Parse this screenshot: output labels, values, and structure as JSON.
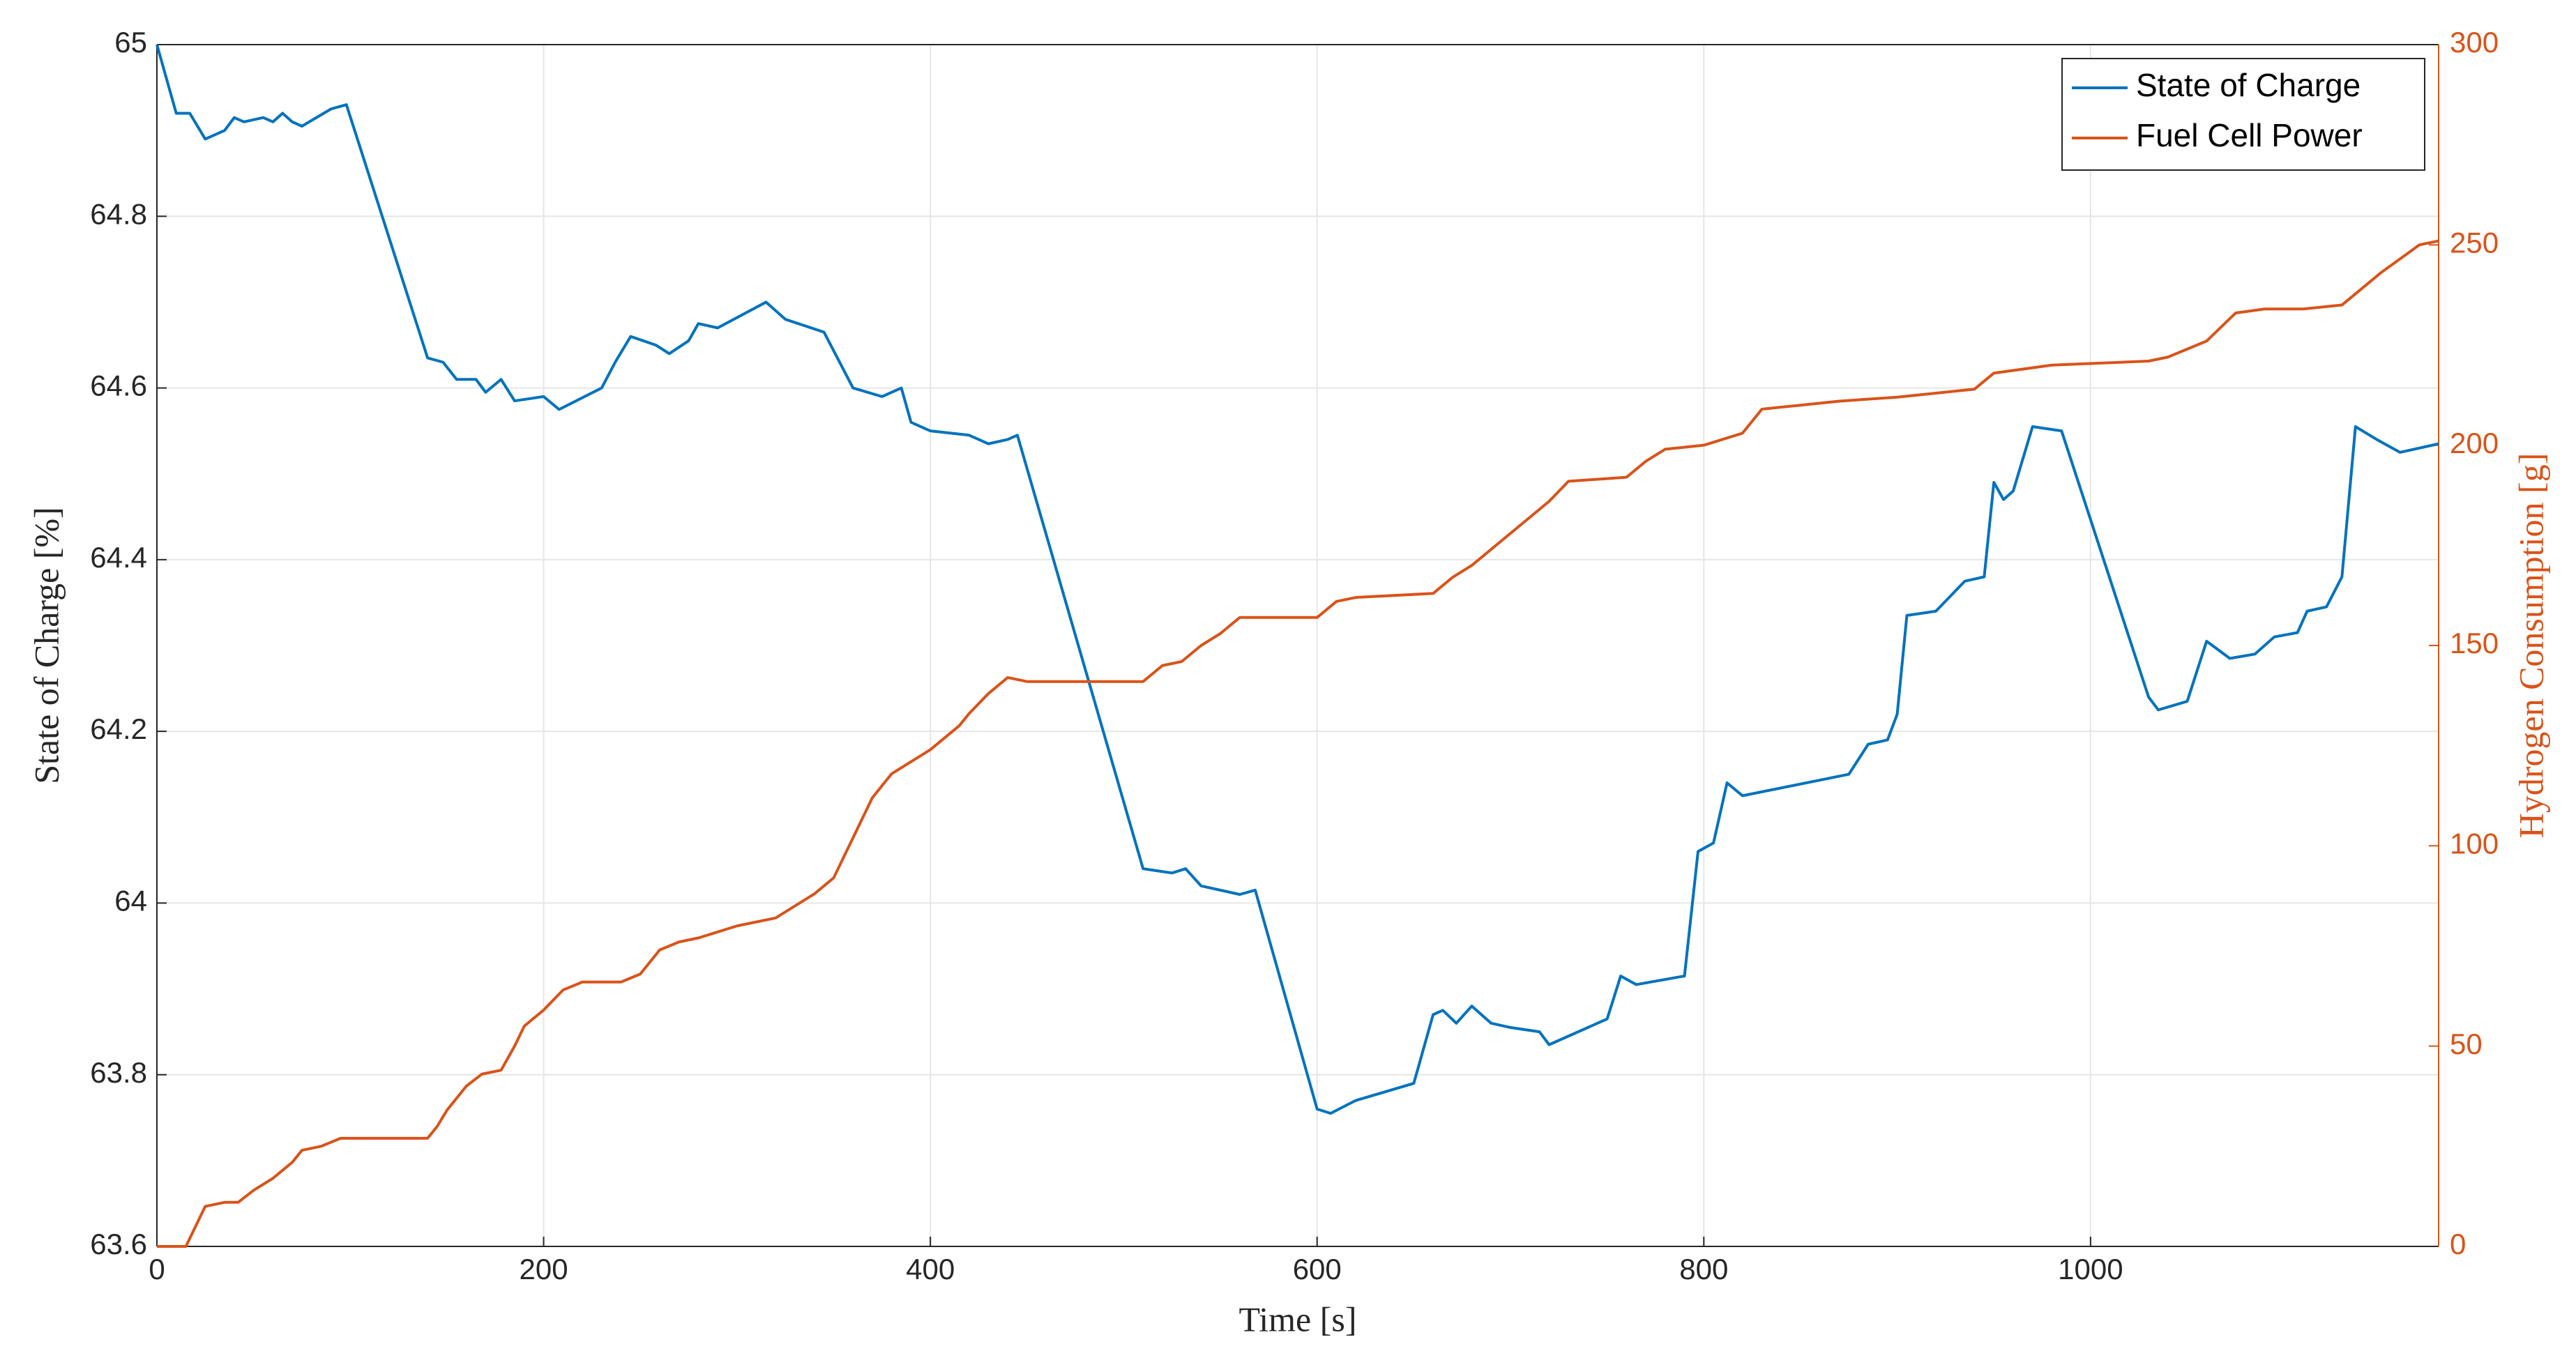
{
  "chart_data": {
    "type": "line",
    "xlabel": "Time [s]",
    "ylabel": "State of Charge [%]",
    "y2label": "Hydrogen Consumption [g]",
    "xlim": [
      0,
      1180
    ],
    "xticks": [
      0,
      200,
      400,
      600,
      800,
      1000
    ],
    "ylim": [
      63.6,
      65
    ],
    "yticks": [
      63.6,
      63.8,
      64,
      64.2,
      64.4,
      64.6,
      64.8,
      65
    ],
    "y2lim": [
      0,
      300
    ],
    "y2ticks": [
      0,
      50,
      100,
      150,
      200,
      250,
      300
    ],
    "grid": true,
    "legend": "upper right",
    "y2color": "#d95319",
    "series": [
      {
        "name": "State of Charge",
        "color": "#0072bd",
        "x": [
          0,
          10,
          17,
          25,
          35,
          40,
          45,
          55,
          60,
          65,
          70,
          75,
          90,
          98,
          140,
          148,
          155,
          165,
          170,
          178,
          185,
          200,
          208,
          230,
          237,
          245,
          258,
          265,
          275,
          280,
          290,
          315,
          325,
          345,
          360,
          375,
          385,
          390,
          400,
          420,
          430,
          440,
          445,
          510,
          525,
          532,
          540,
          560,
          568,
          600,
          607,
          620,
          650,
          660,
          665,
          672,
          680,
          690,
          700,
          715,
          720,
          750,
          757,
          765,
          790,
          797,
          805,
          812,
          820,
          875,
          885,
          895,
          900,
          905,
          920,
          935,
          945,
          950,
          955,
          960,
          970,
          985,
          1030,
          1035,
          1050,
          1060,
          1072,
          1085,
          1095,
          1107,
          1112,
          1122,
          1130,
          1137,
          1148,
          1160,
          1180
        ],
        "values": [
          65,
          64.92,
          64.92,
          64.89,
          64.9,
          64.915,
          64.91,
          64.915,
          64.91,
          64.92,
          64.91,
          64.905,
          64.925,
          64.93,
          64.635,
          64.63,
          64.61,
          64.61,
          64.595,
          64.61,
          64.585,
          64.59,
          64.575,
          64.6,
          64.63,
          64.66,
          64.65,
          64.64,
          64.655,
          64.675,
          64.67,
          64.7,
          64.68,
          64.665,
          64.6,
          64.59,
          64.6,
          64.56,
          64.55,
          64.545,
          64.535,
          64.54,
          64.545,
          64.04,
          64.035,
          64.04,
          64.02,
          64.01,
          64.015,
          63.76,
          63.755,
          63.77,
          63.79,
          63.87,
          63.875,
          63.86,
          63.88,
          63.86,
          63.855,
          63.85,
          63.835,
          63.865,
          63.915,
          63.905,
          63.915,
          64.06,
          64.07,
          64.14,
          64.125,
          64.15,
          64.185,
          64.19,
          64.22,
          64.335,
          64.34,
          64.375,
          64.38,
          64.49,
          64.47,
          64.48,
          64.555,
          64.55,
          64.24,
          64.225,
          64.235,
          64.305,
          64.285,
          64.29,
          64.31,
          64.315,
          64.34,
          64.345,
          64.38,
          64.555,
          64.54,
          64.525,
          64.535
        ]
      },
      {
        "name": "Fuel Cell Power",
        "color": "#d95319",
        "axis": "y2",
        "x": [
          0,
          15,
          20,
          25,
          35,
          42,
          50,
          60,
          70,
          75,
          85,
          95,
          105,
          140,
          145,
          150,
          160,
          168,
          178,
          185,
          190,
          200,
          210,
          220,
          240,
          250,
          260,
          270,
          280,
          300,
          320,
          340,
          350,
          360,
          370,
          380,
          390,
          400,
          415,
          420,
          430,
          440,
          450,
          510,
          520,
          530,
          540,
          550,
          560,
          600,
          610,
          620,
          660,
          670,
          680,
          700,
          710,
          720,
          730,
          760,
          770,
          780,
          800,
          820,
          830,
          850,
          870,
          900,
          920,
          940,
          950,
          965,
          980,
          1030,
          1040,
          1050,
          1060,
          1075,
          1090,
          1110,
          1130,
          1150,
          1170,
          1180
        ],
        "values": [
          0,
          0,
          5,
          10,
          11,
          11,
          14,
          17,
          21,
          24,
          25,
          27,
          27,
          27,
          30,
          34,
          40,
          43,
          44,
          50,
          55,
          59,
          64,
          66,
          66,
          68,
          74,
          76,
          77,
          80,
          82,
          88,
          92,
          102,
          112,
          118,
          121,
          124,
          130,
          133,
          138,
          142,
          141,
          141,
          145,
          146,
          150,
          153,
          157,
          157,
          161,
          162,
          163,
          167,
          170,
          178,
          182,
          186,
          191,
          192,
          196,
          199,
          200,
          203,
          209,
          210,
          211,
          212,
          213,
          214,
          218,
          219,
          220,
          221,
          222,
          224,
          226,
          233,
          234,
          234,
          235,
          243,
          250,
          251
        ]
      }
    ]
  }
}
